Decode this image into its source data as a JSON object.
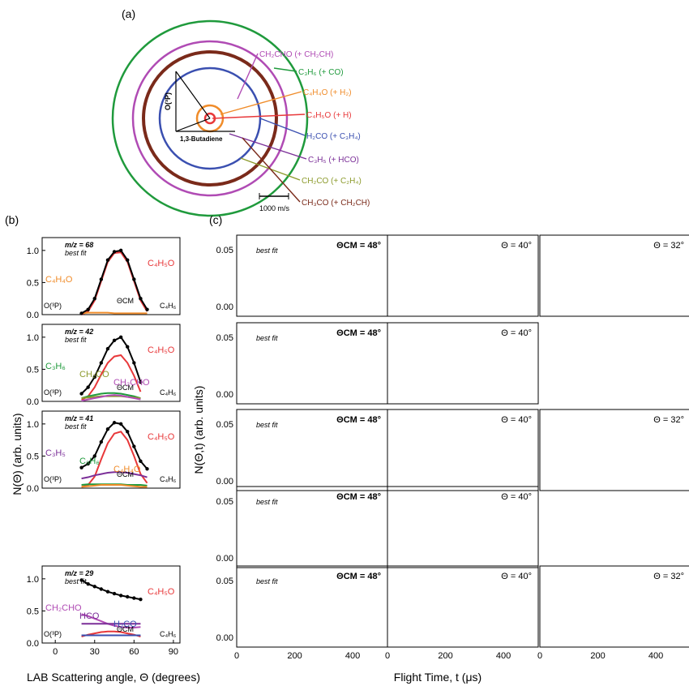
{
  "panel_a": {
    "label": "(a)",
    "center_label": "O(³P)",
    "reactant_label": "1,3-Butadiene",
    "scale_label": "1000 m/s",
    "circles": [
      {
        "label": "CH₂CHO (+ CH₂CH)",
        "color": "#b04bb4"
      },
      {
        "label": "C₃H₆ (+ CO)",
        "color": "#1f9a3c"
      },
      {
        "label": "C₄H₄O (+ H₂)",
        "color": "#f08c2a"
      },
      {
        "label": "C₄H₅O (+ H)",
        "color": "#e8383a"
      },
      {
        "label": "H₂CO (+ C₃H₄)",
        "color": "#3a4fb0"
      },
      {
        "label": "C₃H₅ (+ HCO)",
        "color": "#7b2f98"
      },
      {
        "label": "CH₂CO (+ C₂H₄)",
        "color": "#8c9a2c"
      },
      {
        "label": "CH₃CO (+ CH₂CH)",
        "color": "#7a2a1a"
      }
    ]
  },
  "panel_b": {
    "label": "(b)",
    "ylabel": "N(Θ) (arb. units)",
    "xlabel": "LAB Scattering angle, Θ (degrees)",
    "xticks": [
      "0",
      "30",
      "60",
      "90"
    ],
    "yticks": [
      "0.0",
      "0.5",
      "1.0"
    ],
    "left_marker": "O(³P)",
    "right_marker": "C₄H₆",
    "cm_marker": "ΘCM",
    "legend_data": "best fit"
  },
  "panel_c": {
    "label": "(c)",
    "ylabel": "N(Θ,t) (arb. units)",
    "xlabel": "Flight Time, t (μs)",
    "xticks": [
      "0",
      "200",
      "400"
    ],
    "yticks_a": [
      "0.00",
      "0.05"
    ],
    "cm_title": "ΘCM = 48°",
    "t40": "Θ = 40°",
    "t32": "Θ = 32°",
    "legend_data": "best fit"
  },
  "chart_data": [
    {
      "type": "line",
      "panel": "b",
      "mz": "m/z = 68",
      "xlim": [
        -10,
        95
      ],
      "ylim": [
        0,
        1.2
      ],
      "data_x": [
        20,
        25,
        30,
        35,
        40,
        45,
        50,
        55,
        60,
        65,
        70
      ],
      "data_y": [
        0.02,
        0.08,
        0.25,
        0.55,
        0.85,
        0.98,
        1.0,
        0.85,
        0.55,
        0.25,
        0.08
      ],
      "series": [
        {
          "name": "C₄H₅O",
          "color": "#e8383a",
          "x": [
            20,
            25,
            30,
            35,
            40,
            45,
            50,
            55,
            60,
            65,
            70
          ],
          "y": [
            0.0,
            0.05,
            0.22,
            0.52,
            0.82,
            0.96,
            0.97,
            0.82,
            0.52,
            0.22,
            0.05
          ]
        },
        {
          "name": "C₄H₄O",
          "color": "#f08c2a",
          "x": [
            20,
            25,
            30,
            35,
            40,
            45,
            50,
            55,
            60,
            65,
            70
          ],
          "y": [
            0.02,
            0.03,
            0.03,
            0.03,
            0.03,
            0.02,
            0.02,
            0.02,
            0.02,
            0.02,
            0.02
          ]
        }
      ]
    },
    {
      "type": "line",
      "panel": "b",
      "mz": "m/z = 42",
      "xlim": [
        -10,
        95
      ],
      "ylim": [
        0,
        1.2
      ],
      "data_x": [
        20,
        25,
        30,
        35,
        40,
        45,
        50,
        55,
        60,
        65
      ],
      "data_y": [
        0.12,
        0.22,
        0.38,
        0.6,
        0.82,
        0.95,
        1.0,
        0.85,
        0.6,
        0.3
      ],
      "series": [
        {
          "name": "C₄H₅O",
          "color": "#e8383a",
          "x": [
            20,
            25,
            30,
            35,
            40,
            45,
            50,
            55,
            60,
            65
          ],
          "y": [
            0.02,
            0.08,
            0.22,
            0.42,
            0.6,
            0.7,
            0.72,
            0.6,
            0.4,
            0.15
          ]
        },
        {
          "name": "C₃H₆",
          "color": "#1f9a3c",
          "x": [
            20,
            25,
            30,
            35,
            40,
            45,
            50,
            55,
            60,
            65
          ],
          "y": [
            0.05,
            0.08,
            0.1,
            0.12,
            0.13,
            0.13,
            0.12,
            0.1,
            0.08,
            0.05
          ]
        },
        {
          "name": "CH₂CO",
          "color": "#8c9a2c",
          "x": [
            20,
            25,
            30,
            35,
            40,
            45,
            50,
            55,
            60,
            65
          ],
          "y": [
            0.05,
            0.06,
            0.07,
            0.08,
            0.08,
            0.08,
            0.08,
            0.07,
            0.06,
            0.05
          ]
        },
        {
          "name": "CH₂CHO",
          "color": "#b04bb4",
          "x": [
            20,
            25,
            30,
            35,
            40,
            45,
            50,
            55,
            60,
            65
          ],
          "y": [
            0.01,
            0.03,
            0.05,
            0.07,
            0.09,
            0.1,
            0.09,
            0.07,
            0.05,
            0.03
          ]
        }
      ]
    },
    {
      "type": "line",
      "panel": "b",
      "mz": "m/z = 41",
      "xlim": [
        -10,
        95
      ],
      "ylim": [
        0,
        1.2
      ],
      "data_x": [
        20,
        25,
        30,
        35,
        40,
        45,
        50,
        55,
        60,
        65,
        70
      ],
      "data_y": [
        0.32,
        0.38,
        0.5,
        0.72,
        0.92,
        1.02,
        1.0,
        0.88,
        0.65,
        0.42,
        0.3
      ],
      "series": [
        {
          "name": "C₄H₅O",
          "color": "#e8383a",
          "x": [
            20,
            25,
            30,
            35,
            40,
            45,
            50,
            55,
            60,
            65,
            70
          ],
          "y": [
            0.02,
            0.05,
            0.18,
            0.45,
            0.7,
            0.85,
            0.88,
            0.75,
            0.5,
            0.22,
            0.08
          ]
        },
        {
          "name": "C₃H₅",
          "color": "#7b2f98",
          "x": [
            20,
            25,
            30,
            35,
            40,
            45,
            50,
            55,
            60,
            65,
            70
          ],
          "y": [
            0.15,
            0.17,
            0.2,
            0.22,
            0.24,
            0.25,
            0.25,
            0.24,
            0.22,
            0.2,
            0.17
          ]
        },
        {
          "name": "C₃H₆",
          "color": "#1f9a3c",
          "x": [
            20,
            25,
            30,
            35,
            40,
            45,
            50,
            55,
            60,
            65,
            70
          ],
          "y": [
            0.05,
            0.06,
            0.06,
            0.06,
            0.06,
            0.06,
            0.06,
            0.05,
            0.05,
            0.05,
            0.04
          ]
        },
        {
          "name": "C₄H₄O",
          "color": "#f08c2a",
          "x": [
            20,
            25,
            30,
            35,
            40,
            45,
            50,
            55,
            60,
            65,
            70
          ],
          "y": [
            0.02,
            0.03,
            0.04,
            0.05,
            0.05,
            0.05,
            0.05,
            0.04,
            0.03,
            0.02,
            0.02
          ]
        }
      ]
    },
    {
      "type": "line",
      "panel": "b",
      "mz": "m/z = 29",
      "xlim": [
        -10,
        95
      ],
      "ylim": [
        0,
        1.2
      ],
      "data_x": [
        20,
        25,
        30,
        35,
        40,
        45,
        50,
        55,
        60,
        65
      ],
      "data_y": [
        0.98,
        0.92,
        0.88,
        0.84,
        0.8,
        0.77,
        0.74,
        0.72,
        0.7,
        0.68
      ],
      "series": [
        {
          "name": "C₄H₅O",
          "color": "#e8383a",
          "x": [
            20,
            25,
            30,
            35,
            40,
            45,
            50,
            55,
            60,
            65
          ],
          "y": [
            0.1,
            0.13,
            0.15,
            0.17,
            0.18,
            0.18,
            0.17,
            0.15,
            0.13,
            0.1
          ]
        },
        {
          "name": "CH₂CHO",
          "color": "#b04bb4",
          "x": [
            20,
            25,
            30,
            35,
            40,
            45,
            50,
            55,
            60,
            65
          ],
          "y": [
            0.45,
            0.42,
            0.38,
            0.34,
            0.3,
            0.27,
            0.25,
            0.24,
            0.24,
            0.25
          ]
        },
        {
          "name": "HCO",
          "color": "#7b2f98",
          "x": [
            20,
            25,
            30,
            35,
            40,
            45,
            50,
            55,
            60,
            65
          ],
          "y": [
            0.3,
            0.3,
            0.3,
            0.3,
            0.3,
            0.3,
            0.3,
            0.3,
            0.3,
            0.3
          ]
        },
        {
          "name": "H₂CO",
          "color": "#3a4fb0",
          "x": [
            20,
            25,
            30,
            35,
            40,
            45,
            50,
            55,
            60,
            65
          ],
          "y": [
            0.12,
            0.12,
            0.12,
            0.12,
            0.12,
            0.12,
            0.12,
            0.12,
            0.12,
            0.12
          ]
        }
      ]
    }
  ]
}
